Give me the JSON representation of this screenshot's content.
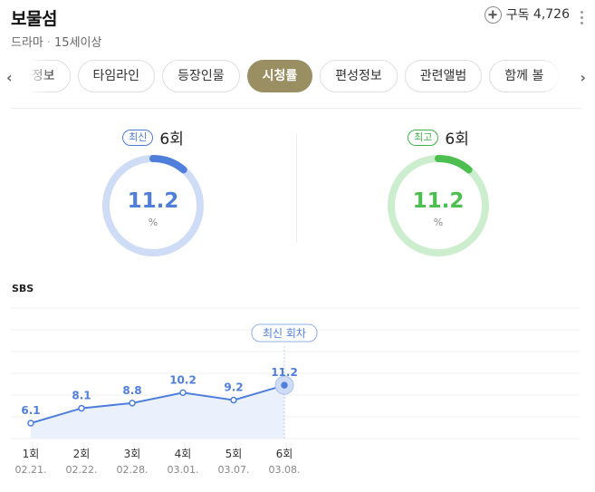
{
  "header": {
    "title": "보물섬",
    "genre": "드라마",
    "rating": "15세이상",
    "subscribe_label": "구독",
    "subscribe_count": "4,726"
  },
  "tabs": [
    {
      "label": "회차정보"
    },
    {
      "label": "타임라인"
    },
    {
      "label": "등장인물"
    },
    {
      "label": "시청률",
      "active": true
    },
    {
      "label": "편성정보"
    },
    {
      "label": "관련앨범"
    },
    {
      "label": "함께 볼"
    }
  ],
  "stats": {
    "latest": {
      "badge": "최신",
      "episode": "6회",
      "value": "11.2",
      "unit": "%",
      "fraction": 0.112,
      "color": "#4f7fdb",
      "track": "#cfdcf6"
    },
    "highest": {
      "badge": "최고",
      "episode": "6회",
      "value": "11.2",
      "unit": "%",
      "fraction": 0.112,
      "color": "#4cbf50",
      "track": "#cdeece"
    }
  },
  "chart_data": {
    "type": "line",
    "title": "SBS",
    "categories": [
      "1회",
      "2회",
      "3회",
      "4회",
      "5회",
      "6회"
    ],
    "dates": [
      "02.21.",
      "02.22.",
      "02.28.",
      "03.01.",
      "03.07.",
      "03.08."
    ],
    "values": [
      6.1,
      8.1,
      8.8,
      10.2,
      9.2,
      11.2
    ],
    "value_labels": [
      "6.1",
      "8.1",
      "8.8",
      "10.2",
      "9.2",
      "11.2"
    ],
    "annotation": "최신 회차",
    "line_color": "#4f7fdb",
    "fill_color": "#eaf1fd",
    "grid": true
  }
}
